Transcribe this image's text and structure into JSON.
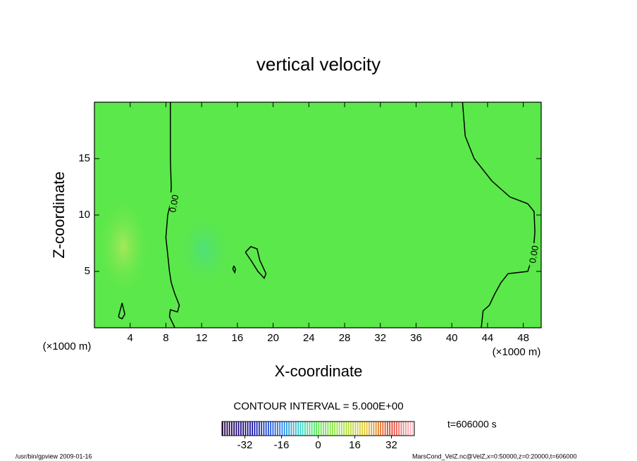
{
  "chart_data": {
    "type": "contour",
    "title": "vertical velocity",
    "x_label": "X-coordinate",
    "y_label": "Z-coordinate",
    "x_unit": "(×1000 m)",
    "xlim": [
      0,
      50
    ],
    "xticks": [
      4,
      8,
      12,
      16,
      20,
      24,
      28,
      32,
      36,
      40,
      44,
      48
    ],
    "ylim": [
      0,
      20
    ],
    "yticks": [
      5,
      10,
      15
    ],
    "contour_interval": "CONTOUR INTERVAL = 5.000E+00",
    "contours": [
      {
        "label": "0.00",
        "x": [
          8.5,
          8.5,
          8.6,
          8.5,
          8.2,
          8.0,
          8.2,
          8.4,
          8.6,
          9.0,
          9.5,
          9.3,
          8.5,
          8.4,
          9.0
        ],
        "z": [
          20,
          15,
          12.5,
          11,
          10,
          8,
          6.5,
          5,
          4,
          3,
          2,
          1.4,
          1.6,
          1.0,
          0
        ]
      },
      {
        "label": "0.00",
        "x": [
          41.2,
          41.5,
          42.5,
          44.5,
          46.5,
          48.5,
          49.2,
          49.3,
          49.1,
          48.5,
          46.3,
          45.5,
          44.8,
          44.2,
          43.5,
          43.3
        ],
        "z": [
          20,
          17,
          15,
          13,
          11.6,
          11.0,
          10.3,
          8.5,
          6.5,
          5.0,
          4.8,
          4.0,
          3.0,
          2.0,
          1.5,
          0
        ]
      },
      {
        "label": null,
        "x": [
          16.9,
          17.5,
          18.2,
          18.5,
          19.2,
          19.0,
          18.3,
          17.5,
          16.9
        ],
        "z": [
          6.7,
          7.2,
          7.0,
          6.0,
          4.8,
          4.4,
          5.0,
          6.0,
          6.7
        ]
      },
      {
        "label": null,
        "x": [
          15.6,
          15.8,
          15.7,
          15.5,
          15.6
        ],
        "z": [
          5.5,
          5.2,
          4.9,
          5.2,
          5.5
        ]
      },
      {
        "label": null,
        "x": [
          2.7,
          3.1,
          3.4,
          3.1,
          2.8,
          2.7
        ],
        "z": [
          1.0,
          2.2,
          1.2,
          0.8,
          0.9,
          1.0
        ]
      }
    ],
    "colorbar": {
      "clim": [
        -42,
        42
      ],
      "ticks": [
        -32,
        -16,
        0,
        16,
        32
      ]
    },
    "time_label": "t=606000 s",
    "footer_left": "/usr/bin/gpview  2009-01-16",
    "footer_right": "MarsCond_VelZ.nc@VelZ,x=0:50000,z=0:20000,t=606000"
  }
}
